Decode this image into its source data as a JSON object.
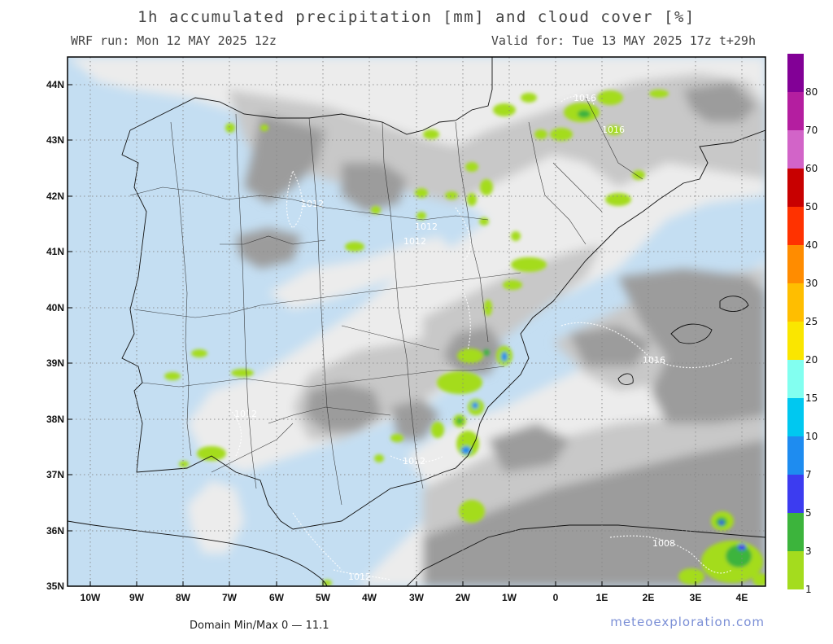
{
  "header": {
    "title": "1h accumulated precipitation [mm] and cloud cover [%]",
    "run": "WRF run: Mon 12 MAY 2025 12z",
    "valid": "Valid for: Tue 13 MAY 2025 17z  t+29h"
  },
  "axes": {
    "lat_labels": [
      "44N",
      "43N",
      "42N",
      "41N",
      "40N",
      "39N",
      "38N",
      "37N",
      "36N",
      "35N"
    ],
    "lon_labels": [
      "10W",
      "9W",
      "8W",
      "7W",
      "6W",
      "5W",
      "4W",
      "3W",
      "2W",
      "1W",
      "0",
      "1E",
      "2E",
      "3E",
      "4E"
    ]
  },
  "legend": {
    "colors": [
      "#a4dc1e",
      "#3cb43c",
      "#3c3cf0",
      "#1e8cf0",
      "#00c8f0",
      "#82fff0",
      "#fae600",
      "#ffbe00",
      "#ff8c00",
      "#ff3200",
      "#c80000",
      "#d264c8",
      "#b41ea0",
      "#820096"
    ],
    "labels": [
      "1",
      "3",
      "5",
      "7",
      "10",
      "15",
      "20",
      "25",
      "30",
      "40",
      "50",
      "60",
      "70",
      "80"
    ]
  },
  "isobars": [
    "1016",
    "1012",
    "1012",
    "1016",
    "1012",
    "1012",
    "1008",
    "1012",
    "1016",
    "1012"
  ],
  "footer": {
    "minmax": "Domain Min/Max 0  —  11.1",
    "credit": "meteoexploration.com"
  },
  "colors": {
    "clear_sky": "#c4def2",
    "cloud_light": "#ececec",
    "cloud_mid": "#c8c8c8",
    "cloud_dark": "#9c9c9c"
  }
}
